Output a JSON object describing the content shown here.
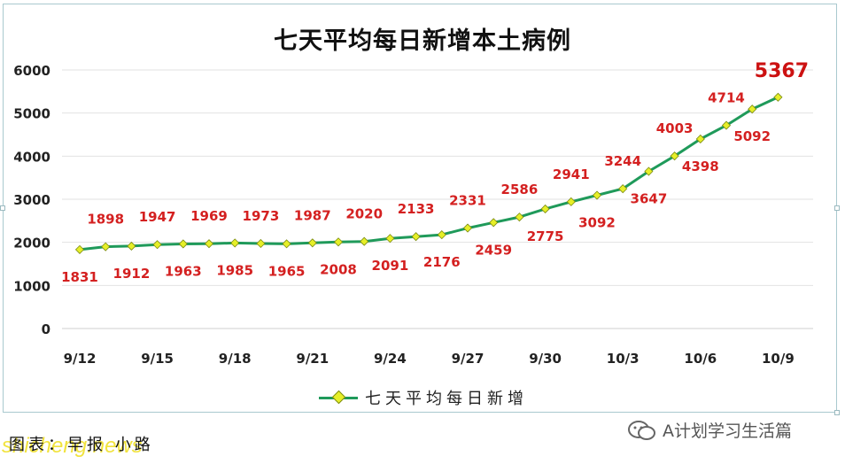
{
  "chart_data": {
    "type": "line",
    "title": "七天平均每日新增本土病例",
    "ylim": [
      0,
      6000
    ],
    "yticks": [
      0,
      1000,
      2000,
      3000,
      4000,
      5000,
      6000
    ],
    "x": [
      "9/12",
      "9/13",
      "9/14",
      "9/15",
      "9/16",
      "9/17",
      "9/18",
      "9/19",
      "9/20",
      "9/21",
      "9/22",
      "9/23",
      "9/24",
      "9/25",
      "9/26",
      "9/27",
      "9/28",
      "9/29",
      "9/30",
      "10/1",
      "10/2",
      "10/3",
      "10/4",
      "10/5",
      "10/6",
      "10/7",
      "10/8",
      "10/9"
    ],
    "xtick_labels": [
      "9/12",
      "9/15",
      "9/18",
      "9/21",
      "9/24",
      "9/27",
      "9/30",
      "10/3",
      "10/6",
      "10/9"
    ],
    "series": [
      {
        "name": "七天平均每日新增",
        "values": [
          1831,
          1898,
          1912,
          1947,
          1963,
          1969,
          1985,
          1973,
          1965,
          1987,
          2008,
          2020,
          2091,
          2133,
          2176,
          2331,
          2459,
          2586,
          2775,
          2941,
          3092,
          3244,
          3647,
          4003,
          4398,
          4714,
          5092,
          5367
        ]
      }
    ],
    "grid": true,
    "legend": "bottom",
    "colors": {
      "line": "#1f9a5a",
      "marker": "#e6ef28",
      "label": "#d42020",
      "last_label": "#cc1111"
    }
  },
  "source": "图表：早报 小路",
  "watermark": "shicheng.news",
  "brand": "A计划学习生活篇"
}
